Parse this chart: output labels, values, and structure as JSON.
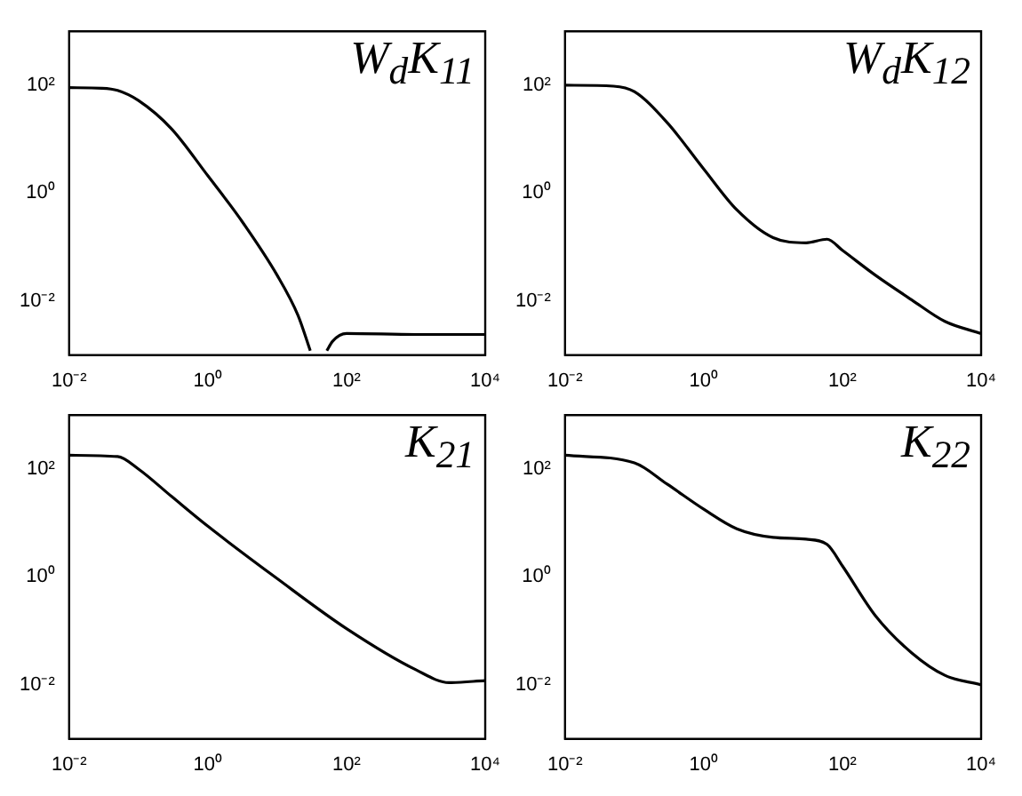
{
  "chart_data": [
    {
      "type": "line",
      "title": "W$_{d}$K$_{11}$",
      "log": "xy",
      "grid": false,
      "xlim": [
        0.01,
        10000
      ],
      "ylim": [
        0.001,
        1000
      ],
      "xticks": [
        {
          "value": 0.01,
          "label": "10⁻²"
        },
        {
          "value": 1,
          "label": "10⁰"
        },
        {
          "value": 100,
          "label": "10²"
        },
        {
          "value": 10000,
          "label": "10⁴"
        }
      ],
      "yticks": [
        {
          "value": 0.01,
          "label": "10⁻²"
        },
        {
          "value": 1,
          "label": "10⁰"
        },
        {
          "value": 100,
          "label": "10²"
        }
      ],
      "series": [
        {
          "color": "#000000",
          "x": [
            0.01,
            0.03,
            0.05,
            0.1,
            0.3,
            1,
            3,
            10,
            20,
            30,
            40,
            52,
            63,
            100,
            1000,
            10000
          ],
          "values": [
            90,
            88,
            80,
            52,
            15.5,
            2.1,
            0.32,
            0.03,
            0.0054,
            0.0012,
            null,
            0.0012,
            0.0018,
            0.0025,
            0.0024,
            0.0024
          ]
        }
      ]
    },
    {
      "type": "line",
      "title": "W$_{d}$K$_{12}$",
      "log": "xy",
      "grid": false,
      "xlim": [
        0.01,
        10000
      ],
      "ylim": [
        0.001,
        1000
      ],
      "xticks": [
        {
          "value": 0.01,
          "label": "10⁻²"
        },
        {
          "value": 1,
          "label": "10⁰"
        },
        {
          "value": 100,
          "label": "10²"
        },
        {
          "value": 10000,
          "label": "10⁴"
        }
      ],
      "yticks": [
        {
          "value": 0.01,
          "label": "10⁻²"
        },
        {
          "value": 1,
          "label": "10⁰"
        },
        {
          "value": 100,
          "label": "10²"
        }
      ],
      "series": [
        {
          "color": "#000000",
          "x": [
            0.01,
            0.05,
            0.1,
            0.3,
            1,
            3,
            10,
            30,
            60,
            100,
            300,
            1000,
            3000,
            10000
          ],
          "values": [
            100,
            96,
            76,
            20,
            2.8,
            0.49,
            0.15,
            0.12,
            0.14,
            0.087,
            0.03,
            0.0105,
            0.0042,
            0.0025
          ]
        }
      ]
    },
    {
      "type": "line",
      "title": "K$_{21}$",
      "log": "xy",
      "grid": false,
      "xlim": [
        0.01,
        10000
      ],
      "ylim": [
        0.001,
        1000
      ],
      "xticks": [
        {
          "value": 0.01,
          "label": "10⁻²"
        },
        {
          "value": 1,
          "label": "10⁰"
        },
        {
          "value": 100,
          "label": "10²"
        },
        {
          "value": 10000,
          "label": "10⁴"
        }
      ],
      "yticks": [
        {
          "value": 0.01,
          "label": "10⁻²"
        },
        {
          "value": 1,
          "label": "10⁰"
        },
        {
          "value": 100,
          "label": "10²"
        }
      ],
      "series": [
        {
          "color": "#000000",
          "x": [
            0.01,
            0.05,
            0.1,
            0.3,
            1,
            10,
            100,
            1000,
            3000,
            10000
          ],
          "values": [
            180,
            170,
            100,
            31,
            8.7,
            0.93,
            0.11,
            0.019,
            0.011,
            0.012
          ]
        }
      ]
    },
    {
      "type": "line",
      "title": "K$_{22}$",
      "log": "xy",
      "grid": false,
      "xlim": [
        0.01,
        10000
      ],
      "ylim": [
        0.001,
        1000
      ],
      "xticks": [
        {
          "value": 0.01,
          "label": "10⁻²"
        },
        {
          "value": 1,
          "label": "10⁰"
        },
        {
          "value": 100,
          "label": "10²"
        },
        {
          "value": 10000,
          "label": "10⁴"
        }
      ],
      "yticks": [
        {
          "value": 0.01,
          "label": "10⁻²"
        },
        {
          "value": 1,
          "label": "10⁰"
        },
        {
          "value": 100,
          "label": "10²"
        }
      ],
      "series": [
        {
          "color": "#000000",
          "x": [
            0.01,
            0.1,
            0.3,
            1,
            3,
            10,
            30,
            60,
            100,
            300,
            1000,
            3000,
            10000
          ],
          "values": [
            180,
            130,
            52,
            18,
            7.8,
            5.4,
            5,
            4,
            1.6,
            0.19,
            0.039,
            0.015,
            0.01
          ]
        }
      ]
    }
  ]
}
